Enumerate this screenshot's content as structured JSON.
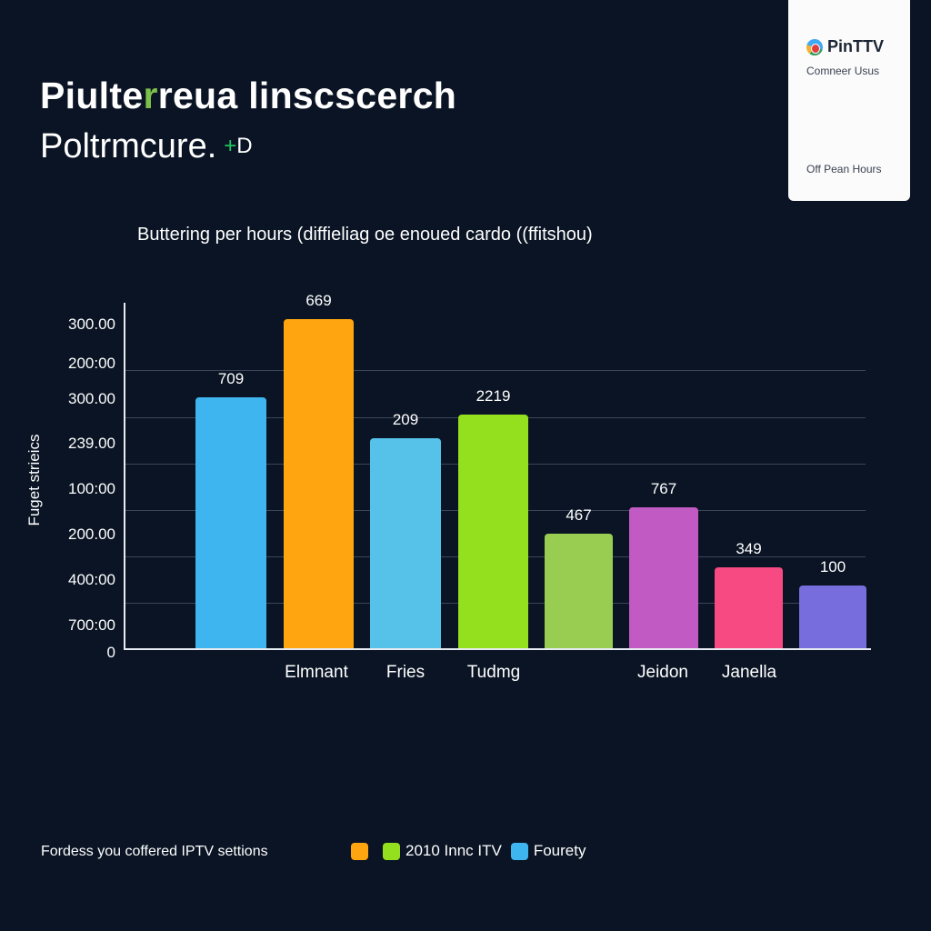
{
  "header": {
    "title_part1": "Piulte",
    "title_accent": "r",
    "title_part2": "reua linscscerch",
    "subtitle": "Poltrmcure.",
    "subtitle_tag_plus": "+",
    "subtitle_tag_text": "D"
  },
  "side_card": {
    "brand_name": "PinTTV",
    "contact": "Comneer Usus",
    "hours": "Off Pean Hours"
  },
  "chart_data": {
    "type": "bar",
    "title": "Buttering per hours (diffieliag oe enoued cardo ((ffitshou)",
    "xlabel": "",
    "ylabel": "Fuget strieics",
    "y_tick_labels": [
      "300.00",
      "200:00",
      "300.00",
      "239.00",
      "100:00",
      "200.00",
      "400:00",
      "700:00",
      "0"
    ],
    "categories": [
      "",
      "Elmnant",
      "Fries",
      "Tudmg",
      "",
      "Jeidon",
      "Janella",
      ""
    ],
    "values": [
      709,
      669,
      209,
      2219,
      467,
      767,
      349,
      100
    ],
    "bar_colors": [
      "#3fb5ef",
      "#ffa50f",
      "#56c2ea",
      "#95e01e",
      "#98cd52",
      "#c25ac3",
      "#f84a82",
      "#786ddc"
    ],
    "grid": true,
    "legend_position": "bottom",
    "legend": [
      {
        "label": "",
        "color": "#ffa50f"
      },
      {
        "label": "2010 Innc ITV",
        "color": "#95e01e"
      },
      {
        "label": "Fourety",
        "color": "#3fb5ef"
      }
    ]
  },
  "footer": {
    "note": "Fordess you coffered IPTV settions"
  }
}
